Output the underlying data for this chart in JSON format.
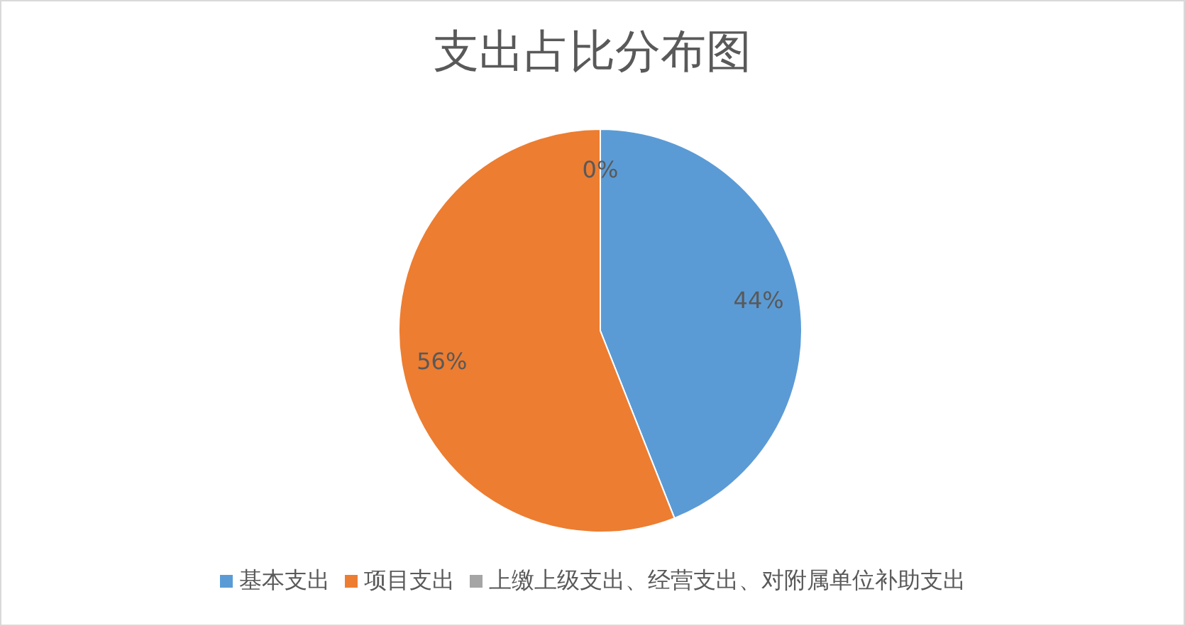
{
  "chart_data": {
    "type": "pie",
    "title": "支出占比分布图",
    "categories": [
      "基本支出",
      "项目支出",
      "上缴上级支出、经营支出、对附属单位补助支出"
    ],
    "values": [
      44,
      56,
      0
    ],
    "colors": [
      "#5b9bd5",
      "#ed7d31",
      "#a5a5a5"
    ],
    "value_labels": [
      "44%",
      "56%",
      "0%"
    ],
    "legend": "bottom"
  }
}
